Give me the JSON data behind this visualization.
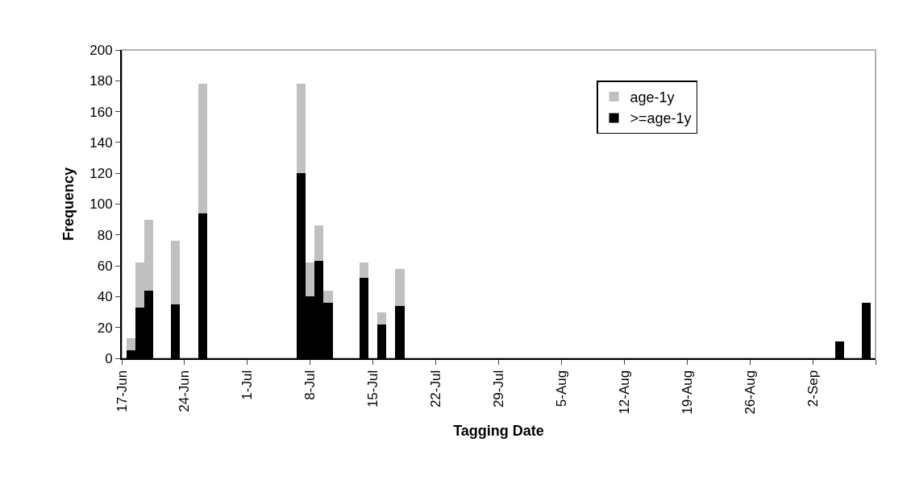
{
  "chart_data": {
    "type": "bar",
    "stacked": true,
    "xlabel": "Tagging Date",
    "ylabel": "Frequency",
    "x": [
      "--06-18",
      "--06-19",
      "--06-20",
      "--06-23",
      "--06-26",
      "--07-07",
      "--07-08",
      "--07-09",
      "--07-10",
      "--07-14",
      "--07-16",
      "--07-18",
      "--09-05",
      "--09-08"
    ],
    "series": [
      {
        "name": ">=age-1y",
        "color": "#000000",
        "values": [
          5,
          33,
          44,
          35,
          94,
          120,
          40,
          63,
          36,
          52,
          22,
          34,
          11,
          36
        ]
      },
      {
        "name": "age-1y",
        "color": "#c0c0c0",
        "values": [
          8,
          29,
          46,
          41,
          84,
          58,
          22,
          23,
          8,
          10,
          8,
          24,
          0,
          0
        ]
      }
    ],
    "xlim": [
      "--06-17",
      "--09-09"
    ],
    "xticks": [
      {
        "value": "--06-17",
        "label": "17-Jun"
      },
      {
        "value": "--06-24",
        "label": "24-Jun"
      },
      {
        "value": "--07-01",
        "label": "1-Jul"
      },
      {
        "value": "--07-08",
        "label": "8-Jul"
      },
      {
        "value": "--07-15",
        "label": "15-Jul"
      },
      {
        "value": "--07-22",
        "label": "22-Jul"
      },
      {
        "value": "--07-29",
        "label": "29-Jul"
      },
      {
        "value": "--08-05",
        "label": "5-Aug"
      },
      {
        "value": "--08-12",
        "label": "12-Aug"
      },
      {
        "value": "--08-19",
        "label": "19-Aug"
      },
      {
        "value": "--08-26",
        "label": "26-Aug"
      },
      {
        "value": "--09-02",
        "label": "2-Sep"
      },
      {
        "value": "--09-09",
        "label": null
      }
    ],
    "ylim": [
      0,
      200
    ],
    "yticks": [
      0,
      20,
      40,
      60,
      80,
      100,
      120,
      140,
      160,
      180,
      200
    ],
    "grid": false,
    "legend": "top right"
  }
}
